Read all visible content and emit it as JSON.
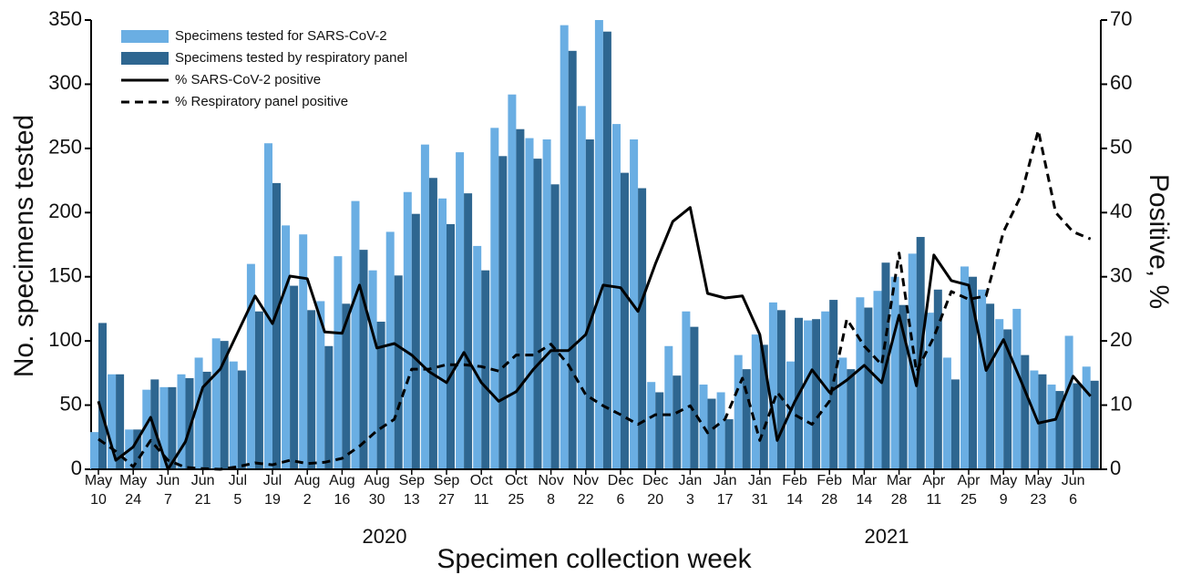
{
  "chart_data": {
    "type": "bar",
    "x_title": "Specimen collection week",
    "y_title": "No. specimens tested",
    "y2_title": "Positive, %",
    "year_labels": [
      "2020",
      "2021"
    ],
    "categories": [
      [
        "May",
        "10"
      ],
      null,
      [
        "May",
        "24"
      ],
      null,
      [
        "Jun",
        "7"
      ],
      null,
      [
        "Jun",
        "21"
      ],
      null,
      [
        "Jul",
        "5"
      ],
      null,
      [
        "Jul",
        "19"
      ],
      null,
      [
        "Aug",
        "2"
      ],
      null,
      [
        "Aug",
        "16"
      ],
      null,
      [
        "Aug",
        "30"
      ],
      null,
      [
        "Sep",
        "13"
      ],
      null,
      [
        "Sep",
        "27"
      ],
      null,
      [
        "Oct",
        "11"
      ],
      null,
      [
        "Oct",
        "25"
      ],
      null,
      [
        "Nov",
        "8"
      ],
      null,
      [
        "Nov",
        "22"
      ],
      null,
      [
        "Dec",
        "6"
      ],
      null,
      [
        "Dec",
        "20"
      ],
      null,
      [
        "Jan",
        "3"
      ],
      null,
      [
        "Jan",
        "17"
      ],
      null,
      [
        "Jan",
        "31"
      ],
      null,
      [
        "Feb",
        "14"
      ],
      null,
      [
        "Feb",
        "28"
      ],
      null,
      [
        "Mar",
        "14"
      ],
      null,
      [
        "Mar",
        "28"
      ],
      null,
      [
        "Apr",
        "11"
      ],
      null,
      [
        "Apr",
        "25"
      ],
      null,
      [
        "May",
        "9"
      ],
      null,
      [
        "May",
        "23"
      ],
      null,
      [
        "Jun",
        "6"
      ],
      null
    ],
    "ylim": [
      0,
      350
    ],
    "yticks": [
      0,
      50,
      100,
      150,
      200,
      250,
      300,
      350
    ],
    "y2lim": [
      0,
      70
    ],
    "y2ticks": [
      0,
      10,
      20,
      30,
      40,
      50,
      60,
      70
    ],
    "series": [
      {
        "name": "Specimens tested for SARS-CoV-2",
        "type": "bar",
        "color": "#6aaee3",
        "values": [
          29,
          74,
          31,
          62,
          64,
          74,
          87,
          102,
          84,
          160,
          254,
          190,
          183,
          131,
          166,
          209,
          155,
          185,
          216,
          253,
          211,
          247,
          174,
          266,
          292,
          258,
          257,
          346,
          283,
          350,
          269,
          257,
          68,
          96,
          123,
          66,
          60,
          89,
          105,
          130,
          84,
          116,
          123,
          87,
          134,
          139,
          150,
          168,
          122,
          87,
          158,
          140,
          117,
          125,
          77,
          66,
          104,
          80
        ]
      },
      {
        "name": "Specimens tested by respiratory panel",
        "type": "bar",
        "color": "#2e6690",
        "values": [
          114,
          74,
          31,
          70,
          64,
          71,
          76,
          100,
          77,
          123,
          223,
          143,
          124,
          96,
          129,
          171,
          115,
          151,
          199,
          227,
          191,
          215,
          155,
          244,
          265,
          242,
          222,
          326,
          257,
          341,
          231,
          219,
          60,
          73,
          111,
          55,
          39,
          78,
          97,
          124,
          118,
          117,
          132,
          78,
          126,
          161,
          128,
          181,
          140,
          70,
          150,
          129,
          109,
          89,
          74,
          61,
          67,
          69
        ]
      },
      {
        "name": "% SARS-CoV-2 positive",
        "type": "line",
        "axis": "y2",
        "color": "#000000",
        "line_style": "solid",
        "values": [
          10.6,
          1.4,
          3.5,
          8.1,
          0,
          4.3,
          12.8,
          15.6,
          21.3,
          27,
          22.7,
          30.1,
          29.7,
          21.4,
          21.2,
          28.7,
          18.9,
          19.6,
          17.8,
          15.2,
          13.5,
          18.2,
          13.5,
          10.6,
          12.1,
          15.6,
          18.5,
          18.5,
          21,
          28.7,
          28.3,
          24.6,
          32,
          38.6,
          40.8,
          27.4,
          26.7,
          27,
          21,
          4.5,
          10.5,
          15.5,
          12,
          13.9,
          16.2,
          13.5,
          24,
          13,
          33.4,
          29.4,
          28.7,
          15.4,
          20.2,
          13.8,
          7.2,
          7.8,
          14.5,
          11.4
        ]
      },
      {
        "name": "% Respiratory panel positive",
        "type": "line",
        "axis": "y2",
        "color": "#000000",
        "line_style": "dashed",
        "values": [
          4.7,
          2.8,
          0.4,
          4.5,
          1.4,
          0.3,
          0.1,
          0,
          0.4,
          1,
          0.7,
          1.4,
          0.9,
          1.1,
          1.7,
          3.6,
          6,
          7.8,
          15.6,
          15.6,
          16.3,
          16.3,
          16,
          15.3,
          17.8,
          17.8,
          19.5,
          16.3,
          11.6,
          9.9,
          8.5,
          7,
          8.5,
          8.5,
          9.9,
          5.7,
          7.8,
          14.2,
          4.5,
          12,
          8.5,
          7,
          10.6,
          23.4,
          19.2,
          16.3,
          33.7,
          15.2,
          20.6,
          27.7,
          26.5,
          27,
          37,
          42.6,
          52.8,
          40,
          37,
          35.9
        ]
      }
    ]
  }
}
